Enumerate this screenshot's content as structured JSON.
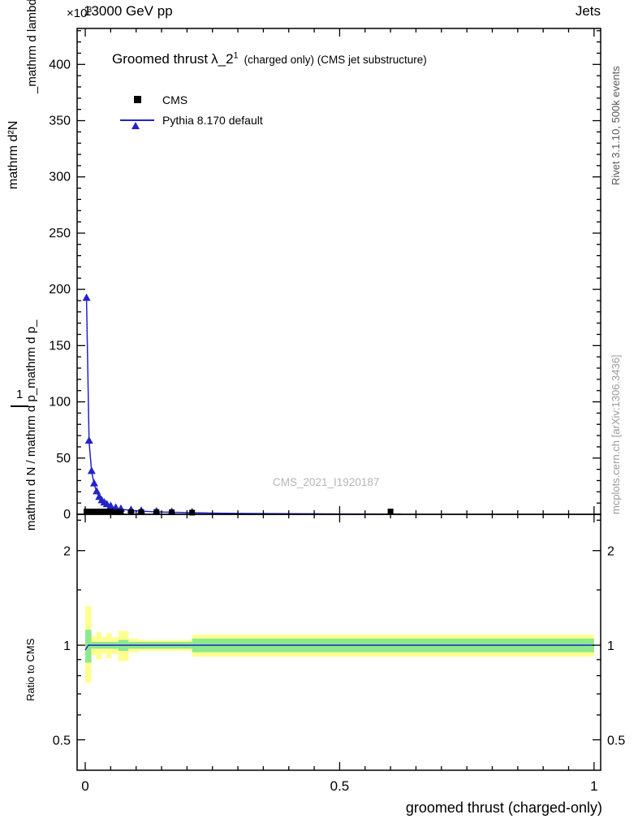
{
  "header": {
    "scale_prefix": "×10",
    "scale_exp": "3",
    "left": "13000 GeV pp",
    "right": "Jets"
  },
  "title": {
    "main": "Groomed thrust",
    "observable": "λ_2",
    "sup": "1",
    "suffix": "(charged only) (CMS jet substructure)"
  },
  "legend": [
    {
      "label": "CMS",
      "marker": "black-square"
    },
    {
      "label": "Pythia 8.170 default",
      "marker": "blue-line-triangle"
    }
  ],
  "y_axis_label": {
    "outer_top": "mathrm d²N",
    "inner_top": "_mathrm d lambda",
    "one": "1",
    "lower": "mathrm d N / mathrm d p_mathrm d p_"
  },
  "side_notes": {
    "top_right": "Rivet 3.1.10,  500k events",
    "bottom_right": "mcplots.cern.ch [arXiv:1306.3436]"
  },
  "colors": {
    "pythia_blue": "#2323cc",
    "cms_black": "#000000",
    "band_yellow": "#ffff8f",
    "band_green": "#8ce98c",
    "watermark_gray": "#b5b5b5",
    "note_top_gray": "#595959",
    "note_bottom_gray": "#9a9a9a"
  },
  "chart_data": {
    "type": "line",
    "title": "Groomed thrust λ_2¹ (charged only) (CMS jet substructure)",
    "xlabel": "groomed thrust (charged-only)",
    "x_range": [
      -0.016,
      1.013
    ],
    "x_major_ticks": [
      0,
      0.5,
      1
    ],
    "x_major_labels": [
      "0",
      "0.5",
      "1"
    ],
    "x_minor_step": 0.05,
    "main_panel": {
      "y_scale_note": "×10³",
      "y_range": [
        0,
        432
      ],
      "y_major_ticks": [
        0,
        50,
        100,
        150,
        200,
        250,
        300,
        350,
        400
      ],
      "y_minor_step": 10,
      "watermark": "CMS_2021_I1920187",
      "series": [
        {
          "name": "CMS",
          "type": "scatter",
          "marker": "square",
          "color": "#000000",
          "points": [
            [
              0.0025,
              2.5
            ],
            [
              0.0075,
              2.5
            ],
            [
              0.0125,
              2.5
            ],
            [
              0.0175,
              2.5
            ],
            [
              0.0225,
              2.5
            ],
            [
              0.0275,
              2.5
            ],
            [
              0.0325,
              2.5
            ],
            [
              0.0375,
              2.5
            ],
            [
              0.0425,
              2.5
            ],
            [
              0.05,
              2.5
            ],
            [
              0.06,
              2.0
            ],
            [
              0.07,
              2.0
            ],
            [
              0.09,
              2.0
            ],
            [
              0.11,
              2.0
            ],
            [
              0.14,
              2.0
            ],
            [
              0.17,
              1.8
            ],
            [
              0.21,
              1.5
            ],
            [
              0.6,
              2.5
            ]
          ]
        },
        {
          "name": "Pythia 8.170 default",
          "type": "line+markers",
          "marker": "triangle",
          "color": "#2323cc",
          "points": [
            [
              0.0025,
              192
            ],
            [
              0.0075,
              65
            ],
            [
              0.0125,
              38
            ],
            [
              0.0175,
              27
            ],
            [
              0.0225,
              20
            ],
            [
              0.0275,
              15
            ],
            [
              0.0325,
              12
            ],
            [
              0.0375,
              10
            ],
            [
              0.0425,
              8.5
            ],
            [
              0.05,
              7
            ],
            [
              0.06,
              5.5
            ],
            [
              0.07,
              4.5
            ],
            [
              0.09,
              3.5
            ],
            [
              0.11,
              2.8
            ],
            [
              0.14,
              2.2
            ],
            [
              0.17,
              1.8
            ],
            [
              0.21,
              1.4
            ],
            [
              0.26,
              1.0
            ],
            [
              0.32,
              0.7
            ],
            [
              0.4,
              0.5
            ],
            [
              0.5,
              0.3
            ],
            [
              0.62,
              0.2
            ]
          ],
          "marker_points": [
            [
              0.0025,
              192
            ],
            [
              0.0075,
              65
            ],
            [
              0.0125,
              38
            ],
            [
              0.0175,
              27
            ],
            [
              0.0225,
              20
            ],
            [
              0.0275,
              15
            ],
            [
              0.0325,
              12
            ],
            [
              0.0375,
              10
            ],
            [
              0.0425,
              8.5
            ],
            [
              0.05,
              7
            ],
            [
              0.06,
              5.5
            ],
            [
              0.07,
              4.5
            ],
            [
              0.09,
              3.5
            ],
            [
              0.11,
              2.8
            ],
            [
              0.14,
              2.2
            ],
            [
              0.17,
              1.8
            ],
            [
              0.21,
              1.4
            ]
          ]
        }
      ]
    },
    "ratio_panel": {
      "ylabel": "Ratio to CMS",
      "y_scale": "log",
      "y_range": [
        0.4,
        2.61
      ],
      "y_major_ticks": [
        0.5,
        1,
        2
      ],
      "y_major_labels": [
        "0.5",
        "1",
        "2"
      ],
      "y_minor_ticks": [
        0.6,
        0.7,
        0.8,
        0.9,
        1.5,
        2.5
      ],
      "bands": {
        "yellow": {
          "color": "#ffff8f",
          "segments": [
            [
              0.0,
              0.012,
              0.76,
              1.33
            ],
            [
              0.012,
              0.022,
              0.93,
              1.07
            ],
            [
              0.022,
              0.032,
              0.9,
              1.1
            ],
            [
              0.032,
              0.042,
              0.94,
              1.06
            ],
            [
              0.042,
              0.052,
              0.91,
              1.09
            ],
            [
              0.052,
              0.065,
              0.94,
              1.06
            ],
            [
              0.065,
              0.085,
              0.89,
              1.11
            ],
            [
              0.085,
              0.105,
              0.95,
              1.05
            ],
            [
              0.105,
              0.21,
              0.96,
              1.04
            ],
            [
              0.21,
              1.0,
              0.92,
              1.08
            ]
          ]
        },
        "green": {
          "color": "#8ce98c",
          "segments": [
            [
              0.0,
              0.012,
              0.88,
              1.12
            ],
            [
              0.012,
              0.065,
              0.975,
              1.025
            ],
            [
              0.065,
              0.085,
              0.96,
              1.04
            ],
            [
              0.085,
              0.21,
              0.975,
              1.025
            ],
            [
              0.21,
              1.0,
              0.95,
              1.05
            ]
          ]
        }
      },
      "line": {
        "color": "#2323cc",
        "points": [
          [
            0.0,
            0.965
          ],
          [
            0.006,
            1.0
          ],
          [
            1.0,
            1.0
          ]
        ]
      }
    }
  }
}
